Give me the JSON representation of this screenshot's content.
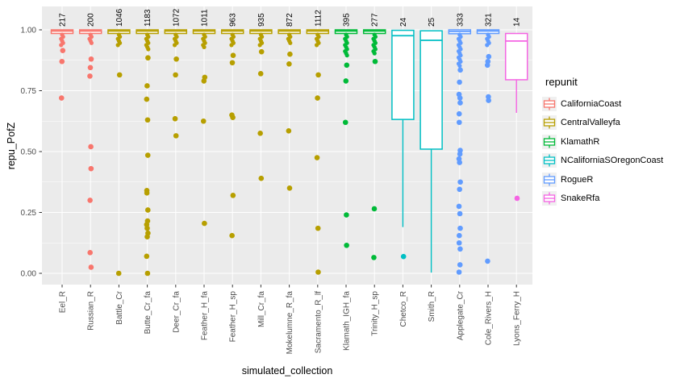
{
  "figure": {
    "x_axis_title": "simulated_collection",
    "y_axis_title": "repu_PofZ",
    "legend_title": "repunit"
  },
  "colors": {
    "panel_bg": "#EBEBEB",
    "grid": "#FFFFFF",
    "tick_mark": "#333333",
    "tick_text": "#4D4D4D",
    "title_text": "#000000",
    "legend_key_bg": "#F0F0F0"
  },
  "legend": {
    "title": "repunit",
    "entries": [
      {
        "name": "CaliforniaCoast",
        "color": "#F8766D"
      },
      {
        "name": "CentralValleyfa",
        "color": "#B79F00"
      },
      {
        "name": "KlamathR",
        "color": "#00BA38"
      },
      {
        "name": "NCaliforniaSOregonCoast",
        "color": "#00BFC4"
      },
      {
        "name": "RogueR",
        "color": "#619CFF"
      },
      {
        "name": "SnakeRfa",
        "color": "#F564E3"
      }
    ]
  },
  "chart_data": {
    "type": "boxplot",
    "title": "",
    "xlabel": "simulated_collection",
    "ylabel": "repu_PofZ",
    "ylim": [
      -0.045,
      1.09
    ],
    "grid": true,
    "legend_position": "right",
    "y_ticks": [
      0,
      0.25,
      0.5,
      0.75,
      1.0
    ],
    "y_tick_labels": [
      "0.00",
      "0.25",
      "0.50",
      "0.75",
      "1.00"
    ],
    "y_minor_ticks": [
      0.125,
      0.375,
      0.625,
      0.875
    ],
    "repunits": {
      "CaliforniaCoast": "#F8766D",
      "CentralValleyfa": "#B79F00",
      "KlamathR": "#00BA38",
      "NCaliforniaSOregonCoast": "#00BFC4",
      "RogueR": "#619CFF",
      "SnakeRfa": "#F564E3"
    },
    "columns": [
      {
        "label": "Eel_R",
        "count": "217",
        "repunit": "CaliforniaCoast",
        "box": {
          "q3": 1.0,
          "med": 0.995,
          "q1": 0.985,
          "wlo": null,
          "whi": null
        },
        "stem": [
          0.98,
          0.93
        ],
        "outliers": [
          0.915,
          0.87,
          0.72
        ]
      },
      {
        "label": "Russian_R",
        "count": "200",
        "repunit": "CaliforniaCoast",
        "box": {
          "q3": 1.0,
          "med": 0.995,
          "q1": 0.985,
          "wlo": null,
          "whi": null
        },
        "stem": [
          0.98,
          0.945
        ],
        "outliers": [
          0.88,
          0.845,
          0.81,
          0.52,
          0.43,
          0.3,
          0.085,
          0.025
        ]
      },
      {
        "label": "Battle_Cr",
        "count": "1046",
        "repunit": "CentralValleyfa",
        "box": {
          "q3": 1.0,
          "med": 0.995,
          "q1": 0.985,
          "wlo": null,
          "whi": null
        },
        "stem": [
          0.98,
          0.93
        ],
        "outliers": [
          0.815,
          0.0
        ]
      },
      {
        "label": "Butte_Cr_fa",
        "count": "1183",
        "repunit": "CentralValleyfa",
        "box": {
          "q3": 1.0,
          "med": 0.995,
          "q1": 0.985,
          "wlo": null,
          "whi": null
        },
        "stem": [
          0.98,
          0.915
        ],
        "outliers": [
          0.885,
          0.77,
          0.715,
          0.63,
          0.485,
          0.34,
          0.33,
          0.26,
          0.215,
          0.2,
          0.185,
          0.165,
          0.15,
          0.07,
          0.0
        ]
      },
      {
        "label": "Deer_Cr_fa",
        "count": "1072",
        "repunit": "CentralValleyfa",
        "box": {
          "q3": 1.0,
          "med": 0.995,
          "q1": 0.985,
          "wlo": null,
          "whi": null
        },
        "stem": [
          0.98,
          0.93
        ],
        "outliers": [
          0.88,
          0.815,
          0.635,
          0.565
        ]
      },
      {
        "label": "Feather_H_fa",
        "count": "1011",
        "repunit": "CentralValleyfa",
        "box": {
          "q3": 1.0,
          "med": 0.995,
          "q1": 0.985,
          "wlo": null,
          "whi": null
        },
        "stem": [
          0.98,
          0.925
        ],
        "outliers": [
          0.805,
          0.79,
          0.625,
          0.205
        ]
      },
      {
        "label": "Feather_H_sp",
        "count": "963",
        "repunit": "CentralValleyfa",
        "box": {
          "q3": 1.0,
          "med": 0.995,
          "q1": 0.985,
          "wlo": null,
          "whi": null
        },
        "stem": [
          0.98,
          0.93
        ],
        "outliers": [
          0.895,
          0.865,
          0.65,
          0.64,
          0.32,
          0.155
        ]
      },
      {
        "label": "Mill_Cr_fa",
        "count": "935",
        "repunit": "CentralValleyfa",
        "box": {
          "q3": 1.0,
          "med": 0.995,
          "q1": 0.985,
          "wlo": null,
          "whi": null
        },
        "stem": [
          0.98,
          0.93
        ],
        "outliers": [
          0.91,
          0.82,
          0.575,
          0.39
        ]
      },
      {
        "label": "Mokelumne_R_fa",
        "count": "872",
        "repunit": "CentralValleyfa",
        "box": {
          "q3": 1.0,
          "med": 0.995,
          "q1": 0.985,
          "wlo": null,
          "whi": null
        },
        "stem": [
          0.98,
          0.94
        ],
        "outliers": [
          0.9,
          0.86,
          0.585,
          0.35
        ]
      },
      {
        "label": "Sacramento_R_lf",
        "count": "1112",
        "repunit": "CentralValleyfa",
        "box": {
          "q3": 1.0,
          "med": 0.995,
          "q1": 0.985,
          "wlo": null,
          "whi": null
        },
        "stem": [
          0.98,
          0.93
        ],
        "outliers": [
          0.815,
          0.72,
          0.475,
          0.185,
          0.005
        ]
      },
      {
        "label": "Klamath_IGH_fa",
        "count": "395",
        "repunit": "KlamathR",
        "box": {
          "q3": 1.0,
          "med": 0.995,
          "q1": 0.985,
          "wlo": null,
          "whi": null
        },
        "stem": [
          0.98,
          0.89
        ],
        "outliers": [
          0.855,
          0.79,
          0.62,
          0.24,
          0.115
        ]
      },
      {
        "label": "Trinity_H_sp",
        "count": "277",
        "repunit": "KlamathR",
        "box": {
          "q3": 1.0,
          "med": 0.995,
          "q1": 0.985,
          "wlo": null,
          "whi": null
        },
        "stem": [
          0.98,
          0.9
        ],
        "outliers": [
          0.87,
          0.265,
          0.065
        ]
      },
      {
        "label": "Chetco_R",
        "count": "24",
        "repunit": "NCaliforniaSOregonCoast",
        "box": {
          "q3": 0.998,
          "med": 0.976,
          "q1": 0.632,
          "wlo": 0.19,
          "whi": null
        },
        "stem": null,
        "outliers": [
          0.069
        ]
      },
      {
        "label": "Smith_R",
        "count": "25",
        "repunit": "NCaliforniaSOregonCoast",
        "box": {
          "q3": 0.996,
          "med": 0.957,
          "q1": 0.51,
          "wlo": 0.003,
          "whi": null
        },
        "stem": null,
        "outliers": []
      },
      {
        "label": "Applegate_Cr",
        "count": "333",
        "repunit": "RogueR",
        "box": {
          "q3": 1.0,
          "med": 0.993,
          "q1": 0.984,
          "wlo": null,
          "whi": null
        },
        "stem": [
          0.98,
          0.85
        ],
        "outliers": [
          0.835,
          0.785,
          0.735,
          0.72,
          0.7,
          0.655,
          0.62,
          0.505,
          0.49,
          0.47,
          0.455,
          0.375,
          0.345,
          0.275,
          0.245,
          0.185,
          0.155,
          0.125,
          0.1,
          0.035,
          0.005
        ]
      },
      {
        "label": "Cole_Rivers_H",
        "count": "321",
        "repunit": "RogueR",
        "box": {
          "q3": 1.0,
          "med": 0.995,
          "q1": 0.985,
          "wlo": null,
          "whi": null
        },
        "stem": [
          0.98,
          0.935
        ],
        "outliers": [
          0.89,
          0.87,
          0.855,
          0.725,
          0.71,
          0.05
        ]
      },
      {
        "label": "Lyons_Ferry_H",
        "count": "14",
        "repunit": "SnakeRfa",
        "box": {
          "q3": 0.985,
          "med": 0.954,
          "q1": 0.795,
          "wlo": 0.659,
          "whi": null
        },
        "stem": null,
        "outliers": [
          0.308
        ]
      }
    ]
  }
}
